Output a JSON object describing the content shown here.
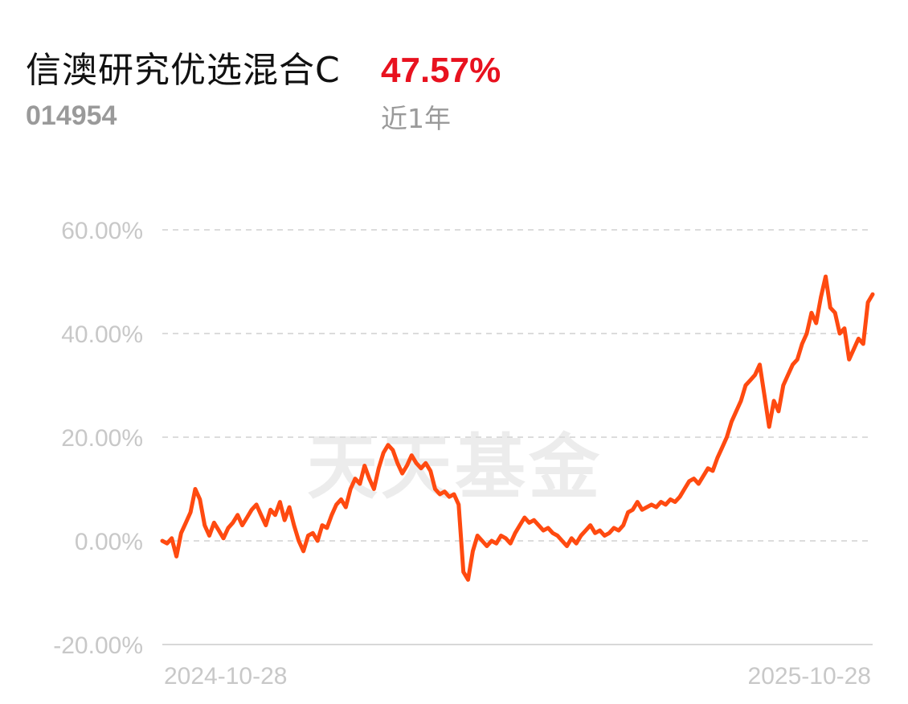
{
  "header": {
    "fund_name": "信澳研究优选混合C",
    "fund_code": "014954",
    "return_value": "47.57%",
    "period_label": "近1年",
    "return_color": "#e8121f"
  },
  "watermark": "天天基金",
  "chart_data": {
    "type": "line",
    "title": "",
    "xlabel": "",
    "ylabel": "",
    "x_start": "2024-10-28",
    "x_end": "2025-10-28",
    "xtick_labels": [
      "2024-10-28",
      "2025-10-28"
    ],
    "ytick_labels": [
      "60.00%",
      "40.00%",
      "20.00%",
      "0.00%",
      "-20.00%"
    ],
    "ylim": [
      -20,
      60
    ],
    "grid": true,
    "legend": "none",
    "line_color": "#ff4a10",
    "series": [
      {
        "values": [
          0.0,
          -0.5,
          0.5,
          -3.0,
          1.5,
          3.5,
          5.5,
          10.0,
          8.0,
          3.0,
          1.0,
          3.5,
          2.0,
          0.5,
          2.5,
          3.5,
          5.0,
          3.0,
          4.5,
          6.0,
          7.0,
          5.0,
          3.0,
          6.0,
          5.0,
          7.5,
          4.0,
          6.5,
          3.0,
          0.0,
          -2.0,
          1.0,
          1.5,
          0.0,
          3.0,
          2.5,
          5.0,
          7.0,
          8.0,
          6.5,
          10.0,
          12.0,
          11.0,
          14.5,
          12.0,
          10.0,
          14.0,
          17.0,
          18.5,
          17.5,
          15.0,
          13.0,
          14.5,
          16.5,
          15.0,
          14.0,
          15.0,
          13.5,
          10.0,
          9.0,
          9.5,
          8.5,
          9.0,
          7.0,
          -6.0,
          -7.5,
          -2.0,
          1.0,
          0.0,
          -1.0,
          0.0,
          -0.5,
          1.0,
          0.5,
          -0.5,
          1.5,
          3.0,
          4.5,
          3.5,
          4.0,
          3.0,
          2.0,
          2.5,
          1.5,
          1.0,
          0.0,
          -1.0,
          0.5,
          -0.5,
          1.0,
          2.0,
          3.0,
          1.5,
          2.0,
          1.0,
          1.5,
          2.5,
          2.0,
          3.0,
          5.5,
          6.0,
          7.5,
          6.0,
          6.5,
          7.0,
          6.5,
          7.5,
          7.0,
          8.0,
          7.5,
          8.5,
          10.0,
          11.5,
          12.0,
          11.0,
          12.5,
          14.0,
          13.5,
          16.0,
          18.0,
          20.0,
          23.0,
          25.0,
          27.0,
          30.0,
          31.0,
          32.0,
          34.0,
          28.0,
          22.0,
          27.0,
          25.0,
          30.0,
          32.0,
          34.0,
          35.0,
          38.0,
          40.0,
          44.0,
          42.0,
          47.0,
          51.0,
          45.0,
          44.0,
          40.0,
          41.0,
          35.0,
          37.0,
          39.0,
          38.0,
          46.0,
          47.57
        ]
      }
    ]
  }
}
